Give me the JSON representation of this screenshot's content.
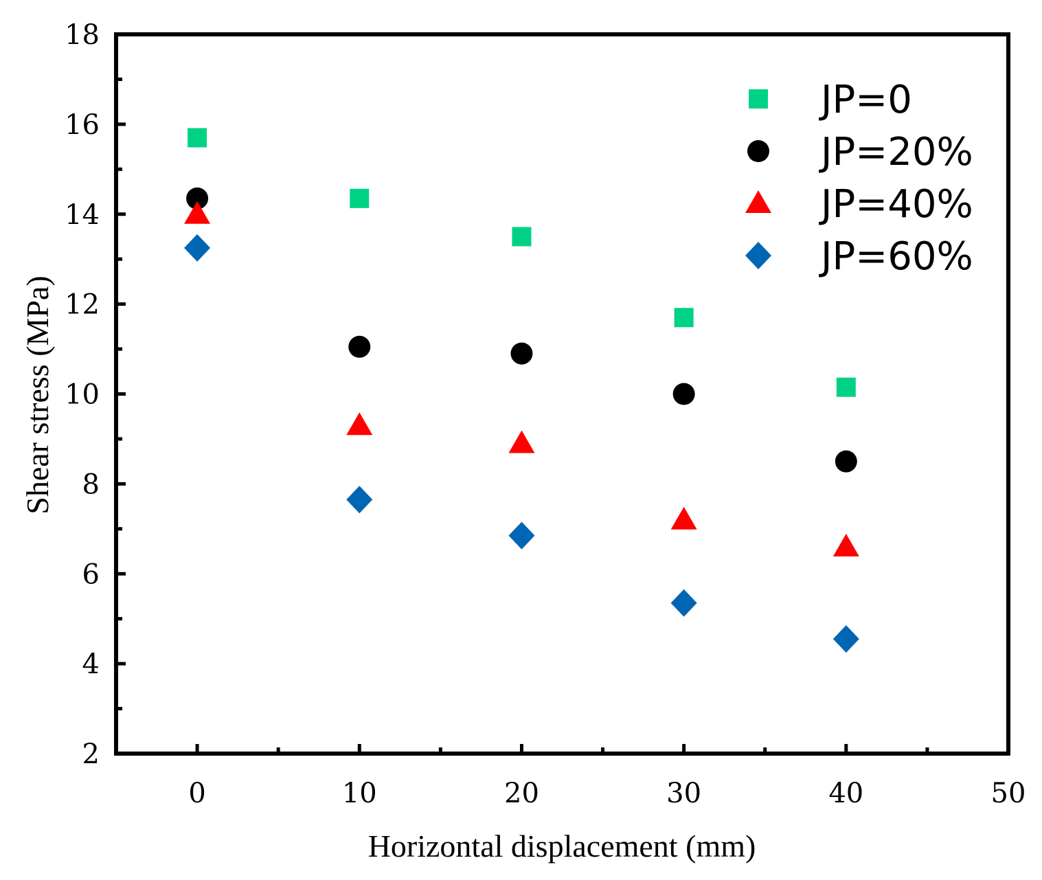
{
  "chart_data": {
    "type": "scatter",
    "title": "",
    "xlabel": "Horizontal displacement (mm)",
    "ylabel": "Shear stress (MPa)",
    "xlim": [
      -5,
      50
    ],
    "ylim": [
      2,
      18
    ],
    "x_ticks": [
      0,
      10,
      20,
      30,
      40,
      50
    ],
    "y_ticks": [
      2,
      4,
      6,
      8,
      10,
      12,
      14,
      16,
      18
    ],
    "grid": false,
    "legend_position": "top-right",
    "x": [
      0,
      10,
      20,
      30,
      40
    ],
    "series": [
      {
        "name": "JP=0",
        "marker": "square",
        "color": "#00d285",
        "values": [
          15.7,
          14.35,
          13.5,
          11.7,
          10.15
        ]
      },
      {
        "name": "JP=20%",
        "marker": "circle",
        "color": "#000000",
        "values": [
          14.35,
          11.05,
          10.9,
          10.0,
          8.5
        ]
      },
      {
        "name": "JP=40%",
        "marker": "triangle",
        "color": "#ff0000",
        "values": [
          14.0,
          9.3,
          8.9,
          7.2,
          6.6
        ]
      },
      {
        "name": "JP=60%",
        "marker": "diamond",
        "color": "#0066b3",
        "values": [
          13.25,
          7.65,
          6.85,
          5.35,
          4.55
        ]
      }
    ]
  }
}
